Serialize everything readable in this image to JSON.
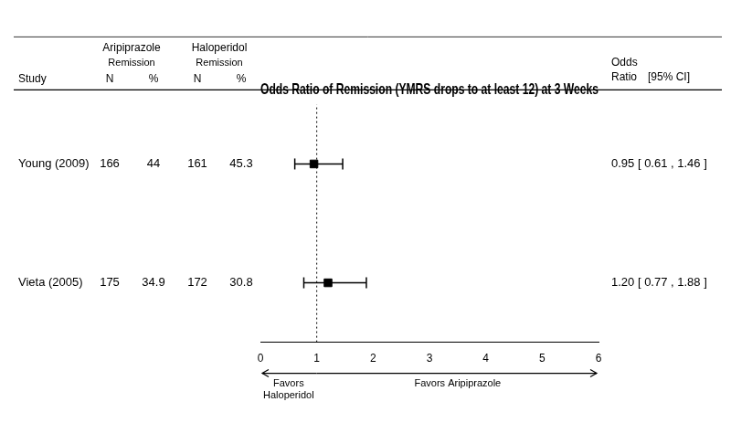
{
  "chart_data": {
    "type": "forest",
    "title": "Odds Ratio of Remission (YMRS drops to at least 12) at 3 Weeks",
    "categories": [
      "Young (2009)",
      "Vieta (2005)"
    ],
    "category_header": "Study",
    "values": [
      0.95,
      1.2
    ],
    "ci_low": [
      0.61,
      0.77
    ],
    "ci_high": [
      1.46,
      1.88
    ],
    "value_labels": [
      "0.95 [ 0.61 , 1.46 ]",
      "1.20 [ 0.77 , 1.88 ]"
    ],
    "value_header": [
      "Odds\nRatio",
      "[95% CI]"
    ],
    "table": [
      {
        "name": "Aripiprazole",
        "subtitle": "Remission",
        "columns": [
          {
            "name": "N",
            "values": [
              166,
              175
            ]
          },
          {
            "name": "%",
            "values": [
              44,
              34.9
            ]
          }
        ]
      },
      {
        "name": "Haloperidol",
        "subtitle": "Remission",
        "columns": [
          {
            "name": "N",
            "values": [
              161,
              172
            ]
          },
          {
            "name": "%",
            "values": [
              45.3,
              30.8
            ]
          }
        ]
      }
    ],
    "null_value": 1,
    "annotations": [
      "Favors\nHaloperidol",
      "Favors Aripiprazole"
    ],
    "xlim": [
      0,
      6
    ],
    "xticks": [
      0,
      1,
      2,
      3,
      4,
      5,
      6
    ],
    "grid": false,
    "tick_labels": "x",
    "color": "#000000",
    "marker": "square"
  }
}
